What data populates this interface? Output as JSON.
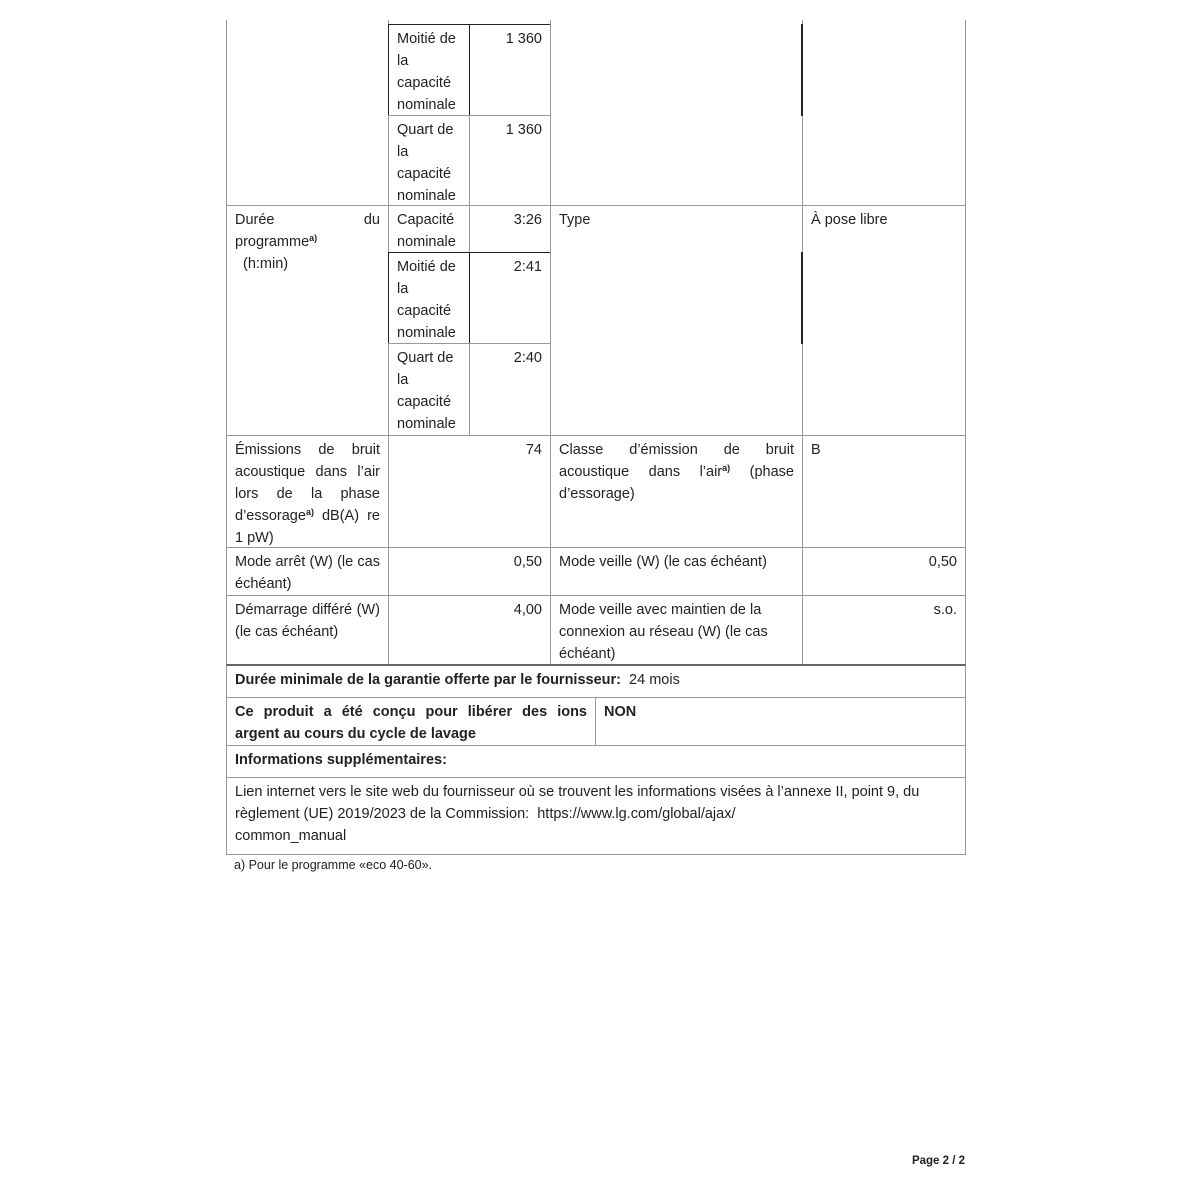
{
  "table": {
    "spin_rows": [
      {
        "label": "Moitié de la capacité nominale",
        "value": "1 360"
      },
      {
        "label": "Quart de la capacité nominale",
        "value": "1 360"
      }
    ],
    "duration": {
      "label": "Durée du programme",
      "label_line1a": "Durée",
      "label_line1b": "du",
      "label_line2": "programme",
      "sup": "a)",
      "unit": "(h:min)",
      "rows": [
        {
          "label": "Capacité nominale",
          "value": "3:26"
        },
        {
          "label": "Moitié de la capacité nominale",
          "value": "2:41"
        },
        {
          "label": "Quart de la capacité nominale",
          "value": "2:40"
        }
      ],
      "type_label": "Type",
      "type_value": "À pose libre"
    },
    "noise": {
      "label_a": "Émissions de bruit acoustique dans l’air lors de la phase d’essorage",
      "sup": "a)",
      "label_b": " dB(A) re 1 pW)",
      "value": "74",
      "class_label_a": "Classe d’émission de bruit acoustique dans l’air",
      "class_label_b": " (phase d’essorage)",
      "class_value": "B"
    },
    "off_mode": {
      "label": "Mode arrêt (W) (le cas échéant)",
      "value": "0,50",
      "standby_label": "Mode veille (W) (le cas échéant)",
      "standby_value": "0,50"
    },
    "delay": {
      "label": "Démarrage différé (W) (le cas échéant)",
      "value": "4,00",
      "network_label": "Mode veille avec maintien de la connexion au réseau (W) (le cas échéant)",
      "network_value": "s.o."
    },
    "warranty": {
      "label": "Durée minimale de la garantie offerte par le fournisseur:",
      "value": "24 mois"
    },
    "silver_ions": {
      "label": "Ce produit a été conçu pour libérer des ions argent au cours du cycle de lavage",
      "value": "NON"
    },
    "extra_info_label": "Informations supplémentaires:",
    "link_text": "Lien internet vers le site web du fournisseur où se trouvent les informations visées à l’annexe II, point 9, du règlement (UE) 2019/2023 de la Commission:",
    "link_url_1": "https://www.lg.com/global/ajax/",
    "link_url_2": "common_manual"
  },
  "footnote": "a) Pour le programme «eco 40-60».",
  "page_number": "Page 2 / 2"
}
